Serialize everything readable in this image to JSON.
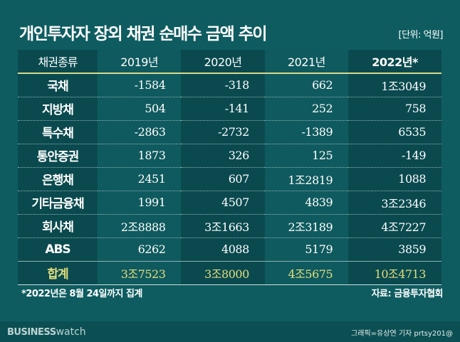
{
  "title": "개인투자자 장외 채권 순매수 금액 추이",
  "unit": "[단위: 억원]",
  "table": {
    "headers": [
      "채권종류",
      "2019년",
      "2020년",
      "2021년",
      "2022년*"
    ],
    "rows": [
      [
        "국채",
        "-1584",
        "-318",
        "662",
        "1조3049"
      ],
      [
        "지방채",
        "504",
        "-141",
        "252",
        "758"
      ],
      [
        "특수채",
        "-2863",
        "-2732",
        "-1389",
        "6535"
      ],
      [
        "통안증권",
        "1873",
        "326",
        "125",
        "-149"
      ],
      [
        "은행채",
        "2451",
        "607",
        "1조2819",
        "1088"
      ],
      [
        "기타금융채",
        "1991",
        "4507",
        "4839",
        "3조2346"
      ],
      [
        "회사채",
        "2조8888",
        "3조1663",
        "2조3189",
        "4조7227"
      ],
      [
        "ABS",
        "6262",
        "4088",
        "5179",
        "3859"
      ]
    ],
    "total": [
      "합계",
      "3조7523",
      "3조8000",
      "4조5675",
      "10조4713"
    ]
  },
  "note": "*2022년은 8월 24일까지 집계",
  "source": "자료: 금융투자협회",
  "brand": {
    "bold": "BUSINESS",
    "light": "watch"
  },
  "credit": "그래픽=유상연 기자 prtsy201@",
  "colors": {
    "background": "#0e5c60",
    "total_text": "#e2de7e",
    "header_rule": "#d9d98a"
  }
}
